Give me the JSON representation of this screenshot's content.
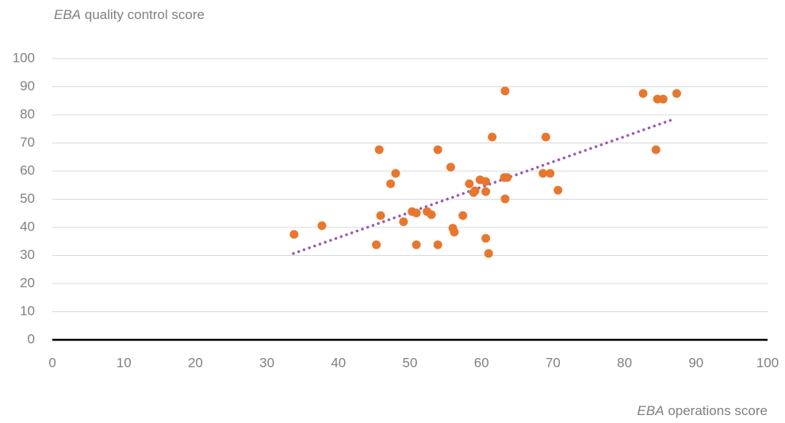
{
  "chart_data": {
    "type": "scatter",
    "y_label": {
      "emphasis": "EBA",
      "text": "quality control score"
    },
    "x_label": {
      "emphasis": "EBA",
      "text": "operations score"
    },
    "xlim": [
      0,
      100
    ],
    "ylim": [
      0,
      100
    ],
    "xticks": [
      0,
      10,
      20,
      30,
      40,
      50,
      60,
      70,
      80,
      90,
      100
    ],
    "yticks": [
      0,
      10,
      20,
      30,
      40,
      50,
      60,
      70,
      80,
      90,
      100
    ],
    "grid": true,
    "series": [
      {
        "color": "#e8772e",
        "x": [
          33.8,
          37.7,
          45.3,
          45.7,
          45.9,
          47.3,
          48.0,
          49.1,
          50.3,
          50.9,
          50.9,
          52.4,
          53.0,
          53.9,
          53.9,
          55.7,
          56.0,
          56.2,
          57.4,
          58.3,
          58.9,
          59.1,
          59.8,
          60.6,
          60.6,
          60.6,
          61.0,
          61.5,
          63.2,
          63.6,
          63.3,
          63.3,
          68.6,
          69.0,
          69.6,
          70.7,
          82.6,
          84.4,
          84.6,
          85.4,
          87.3
        ],
        "values": [
          37.5,
          40.6,
          33.8,
          67.6,
          44.2,
          55.5,
          59.2,
          42.0,
          45.6,
          45.1,
          33.8,
          45.6,
          44.5,
          67.6,
          33.8,
          61.4,
          39.7,
          38.3,
          44.2,
          55.5,
          52.4,
          53.0,
          56.9,
          56.3,
          52.7,
          36.1,
          30.7,
          72.1,
          57.7,
          57.7,
          50.1,
          88.5,
          59.2,
          72.1,
          59.2,
          53.2,
          87.6,
          67.6,
          85.6,
          85.6,
          87.6
        ]
      }
    ],
    "trendline": {
      "color": "#9b59b6",
      "x": [
        33.7,
        86.7
      ],
      "values": [
        30.7,
        78.3
      ]
    }
  }
}
